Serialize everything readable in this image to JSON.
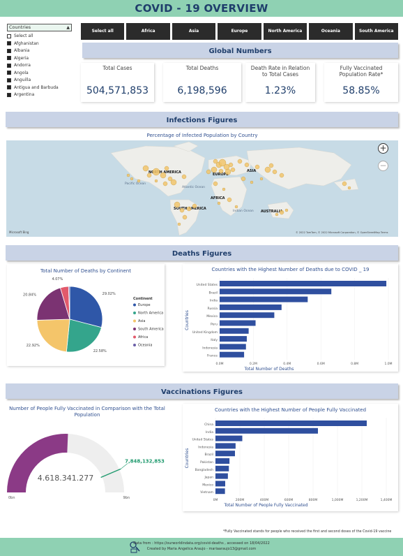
{
  "header": {
    "title": "COVID - 19 OVERVIEW"
  },
  "slicer": {
    "label": "Countries",
    "items": [
      "Select all",
      "Afghanistan",
      "Albania",
      "Algeria",
      "Andorra",
      "Angola",
      "Anguilla",
      "Antigua and Barbuda",
      "Argentina"
    ]
  },
  "continent_buttons": [
    "Select all",
    "Africa",
    "Asia",
    "Europe",
    "North America",
    "Oceania",
    "South America"
  ],
  "sections": {
    "global": "Global Numbers",
    "infections": "Infections Figures",
    "deaths": "Deaths Figures",
    "vaccinations": "Vaccinations Figures"
  },
  "kpis": [
    {
      "label": "Total Cases",
      "value": "504,571,853"
    },
    {
      "label": "Total Deaths",
      "value": "6,198,596"
    },
    {
      "label": "Death Rate in Relation to Total Cases",
      "value": "1.23%"
    },
    {
      "label": "Fully Vaccinated Population Rate*",
      "value": "58.85%"
    }
  ],
  "map": {
    "title": "Percentage of Infected Population by Country",
    "labels": [
      "NORTH AMERICA",
      "EUROPE",
      "ASIA",
      "AFRICA",
      "SOUTH AMERICA",
      "AUSTRALIA"
    ],
    "ocean_labels": [
      "Pacific Ocean",
      "Atlantic Ocean",
      "Indian Ocean"
    ],
    "attribution": "© 2022 TomTom, © 2022 Microsoft Corporation, © OpenStreetMap  Terms",
    "brand": "Microsoft Bing",
    "zoom_in": "+",
    "zoom_out": "−"
  },
  "deaths_pie": {
    "title": "Total Number of Deaths by Continent",
    "legend_title": "Continent"
  },
  "deaths_bar": {
    "title": "Countries with the Highest Number of Deaths due to COVID _ 19",
    "xlabel": "Total Number of Deaths",
    "ylabel": "Countries"
  },
  "vacc_gauge": {
    "title": "Number of People Fully Vaccinated in Comparison with the Total Population",
    "value_label": "4.618.341.277",
    "target_label": "7,848,132,853",
    "min_label": "0bn",
    "max_label": "9bn"
  },
  "vacc_bar": {
    "title": "Countries with the Highest Number of People Fully Vaccinated",
    "xlabel": "Total Number of People Fully Vaccinated",
    "ylabel": "Countries"
  },
  "footnote": "*Fully Vaccinated stands for people who received the first and second doses of the Covid-19 vaccine",
  "footer": {
    "source": "Data from : https://ourworldindata.org/covid-deaths , accessed on 18/04/2022",
    "credit": "Created by Maria Angelica Araujo - mariaaraujo13@gmail.com"
  },
  "colors": {
    "accent": "#8fd1b3",
    "navy": "#1f3e6b",
    "bar": "#2f4f9f",
    "band": "#c9d3e6",
    "gauge": "#8b3a86"
  },
  "chart_data": [
    {
      "type": "pie",
      "title": "Total Number of Deaths by Continent",
      "legend_title": "Continent",
      "slices": [
        {
          "name": "Europe",
          "value": 29.02,
          "label": "29.02%",
          "color": "#2f57a8"
        },
        {
          "name": "North America",
          "value": 22.58,
          "label": "22.58%",
          "color": "#34a58c"
        },
        {
          "name": "Asia",
          "value": 22.92,
          "label": "22.92%",
          "color": "#f4c56a"
        },
        {
          "name": "South America",
          "value": 20.84,
          "label": "20.84%",
          "color": "#7b3372"
        },
        {
          "name": "Africa",
          "value": 4.07,
          "label": "4.07%",
          "color": "#e2596b"
        },
        {
          "name": "Oceania",
          "value": 0.57,
          "label": "",
          "color": "#6b5fa8"
        }
      ]
    },
    {
      "type": "bar",
      "orientation": "horizontal",
      "title": "Countries with the Highest Number of Deaths due to COVID _ 19",
      "xlabel": "Total Number of Deaths",
      "ylabel": "Countries",
      "categories": [
        "United States",
        "Brazil",
        "India",
        "Russia",
        "Mexico",
        "Peru",
        "United Kingdom",
        "Italy",
        "Indonesia",
        "France"
      ],
      "values": [
        988000,
        662000,
        522000,
        367000,
        324000,
        213000,
        172000,
        161000,
        156000,
        145000
      ],
      "xlim": [
        0,
        1000000
      ],
      "ticks": [
        0,
        200000,
        400000,
        600000,
        800000,
        1000000
      ],
      "tick_labels": [
        "0.0M",
        "0.2M",
        "0.4M",
        "0.6M",
        "0.8M",
        "1.0M"
      ]
    },
    {
      "type": "gauge",
      "title": "Number of People Fully Vaccinated in Comparison with the Total Population",
      "value": 4618341277,
      "target": 7848132853,
      "min": 0,
      "max": 9000000000
    },
    {
      "type": "bar",
      "orientation": "horizontal",
      "title": "Countries with the Highest Number of People Fully Vaccinated",
      "xlabel": "Total Number of People Fully Vaccinated",
      "ylabel": "Countries",
      "categories": [
        "China",
        "India",
        "United States",
        "Indonesia",
        "Brazil",
        "Pakistan",
        "Bangladesh",
        "Japan",
        "Mexico",
        "Vietnam"
      ],
      "values": [
        1240000000,
        840000000,
        220000000,
        165000000,
        160000000,
        115000000,
        110000000,
        102000000,
        80000000,
        78000000
      ],
      "xlim": [
        0,
        1400000000
      ],
      "ticks": [
        0,
        200000000,
        400000000,
        600000000,
        800000000,
        1000000000,
        1200000000,
        1400000000
      ],
      "tick_labels": [
        "0M",
        "200M",
        "400M",
        "600M",
        "800M",
        "1,000M",
        "1,200M",
        "1,400M"
      ]
    }
  ]
}
